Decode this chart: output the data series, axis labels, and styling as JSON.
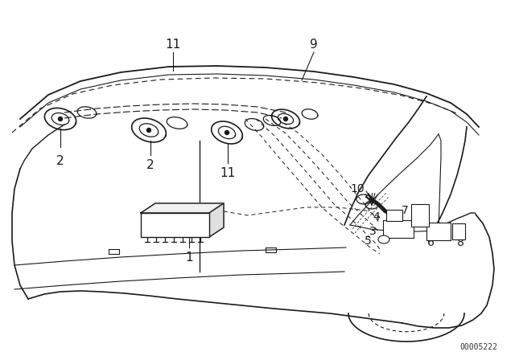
{
  "bg_color": "#ffffff",
  "line_color": "#1a1a1a",
  "fig_width": 6.4,
  "fig_height": 4.48,
  "dpi": 100,
  "watermark": "00005222"
}
